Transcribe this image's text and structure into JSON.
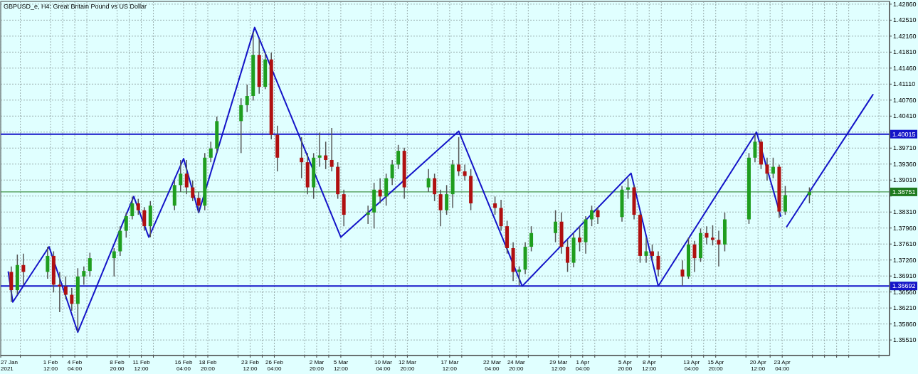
{
  "chart_data": {
    "type": "candlestick",
    "title": "GBPUSD_e, H4:  Great Britain Pound vs US Dollar",
    "x": [
      "2021-01-28T04:00",
      "2021-01-28T20:00",
      "2021-01-29T12:00",
      "2021-02-01T04:00",
      "2021-02-01T20:00",
      "2021-02-02T12:00",
      "2021-02-03T04:00",
      "2021-02-03T20:00",
      "2021-02-04T12:00",
      "2021-02-05T04:00",
      "2021-02-05T20:00",
      "2021-02-08T12:00",
      "2021-02-09T04:00",
      "2021-02-09T20:00",
      "2021-02-10T12:00",
      "2021-02-11T04:00",
      "2021-02-11T20:00",
      "2021-02-12T12:00",
      "2021-02-15T04:00",
      "2021-02-15T20:00",
      "2021-02-16T12:00",
      "2021-02-17T04:00",
      "2021-02-17T20:00",
      "2021-02-18T12:00",
      "2021-02-19T04:00",
      "2021-02-19T20:00",
      "2021-02-22T12:00",
      "2021-02-23T04:00",
      "2021-02-23T20:00",
      "2021-02-24T12:00",
      "2021-02-25T04:00",
      "2021-02-25T20:00",
      "2021-02-26T12:00",
      "2021-03-01T04:00",
      "2021-03-01T20:00",
      "2021-03-02T12:00",
      "2021-03-03T04:00",
      "2021-03-03T20:00",
      "2021-03-04T12:00",
      "2021-03-05T04:00",
      "2021-03-05T20:00",
      "2021-03-08T12:00",
      "2021-03-09T04:00",
      "2021-03-09T20:00",
      "2021-03-10T12:00",
      "2021-03-11T04:00",
      "2021-03-11T20:00",
      "2021-03-12T12:00",
      "2021-03-15T04:00",
      "2021-03-15T20:00",
      "2021-03-16T12:00",
      "2021-03-17T04:00",
      "2021-03-17T20:00",
      "2021-03-18T12:00",
      "2021-03-19T04:00",
      "2021-03-19T20:00",
      "2021-03-22T12:00",
      "2021-03-23T04:00",
      "2021-03-23T20:00",
      "2021-03-24T12:00",
      "2021-03-25T04:00",
      "2021-03-25T20:00",
      "2021-03-26T12:00",
      "2021-03-29T04:00",
      "2021-03-29T20:00",
      "2021-03-30T12:00",
      "2021-03-31T04:00",
      "2021-03-31T20:00",
      "2021-04-01T12:00",
      "2021-04-02T04:00",
      "2021-04-02T20:00",
      "2021-04-05T12:00",
      "2021-04-06T04:00",
      "2021-04-06T20:00",
      "2021-04-07T12:00",
      "2021-04-08T04:00",
      "2021-04-08T20:00",
      "2021-04-09T12:00",
      "2021-04-12T04:00",
      "2021-04-12T20:00",
      "2021-04-13T12:00",
      "2021-04-14T04:00",
      "2021-04-14T20:00",
      "2021-04-15T12:00",
      "2021-04-16T04:00",
      "2021-04-16T20:00",
      "2021-04-19T12:00",
      "2021-04-20T04:00",
      "2021-04-20T20:00",
      "2021-04-21T12:00",
      "2021-04-22T04:00",
      "2021-04-22T20:00",
      "2021-04-23T12:00",
      "2021-04-26T04:00"
    ],
    "ohlc": [
      [
        1.37,
        1.3712,
        1.3634,
        1.366
      ],
      [
        1.366,
        1.3738,
        1.365,
        1.3715
      ],
      [
        1.3715,
        1.374,
        1.3672,
        1.37
      ],
      [
        1.37,
        1.3755,
        1.3685,
        1.3735
      ],
      [
        1.3735,
        1.3745,
        1.3655,
        1.3672
      ],
      [
        1.3672,
        1.37,
        1.3612,
        1.3668
      ],
      [
        1.3668,
        1.369,
        1.364,
        1.365
      ],
      [
        1.365,
        1.3665,
        1.3615,
        1.363
      ],
      [
        1.363,
        1.3708,
        1.357,
        1.369
      ],
      [
        1.369,
        1.3712,
        1.3672,
        1.3702
      ],
      [
        1.3702,
        1.3742,
        1.369,
        1.373
      ],
      [
        1.373,
        1.3752,
        1.369,
        1.3745
      ],
      [
        1.3745,
        1.38,
        1.3735,
        1.379
      ],
      [
        1.379,
        1.383,
        1.3775,
        1.3822
      ],
      [
        1.3822,
        1.3865,
        1.3815,
        1.385
      ],
      [
        1.385,
        1.386,
        1.3825,
        1.3835
      ],
      [
        1.3835,
        1.3842,
        1.379,
        1.38
      ],
      [
        1.38,
        1.3855,
        1.3776,
        1.3845
      ],
      [
        1.3845,
        1.39,
        1.3835,
        1.389
      ],
      [
        1.389,
        1.3945,
        1.3875,
        1.3915
      ],
      [
        1.3915,
        1.3945,
        1.387,
        1.3885
      ],
      [
        1.3885,
        1.39,
        1.3855,
        1.3862
      ],
      [
        1.3862,
        1.3875,
        1.383,
        1.3845
      ],
      [
        1.3845,
        1.396,
        1.3835,
        1.395
      ],
      [
        1.395,
        1.3985,
        1.394,
        1.397
      ],
      [
        1.397,
        1.404,
        1.396,
        1.403
      ],
      [
        1.403,
        1.408,
        1.396,
        1.4065
      ],
      [
        1.4065,
        1.411,
        1.405,
        1.4085
      ],
      [
        1.4085,
        1.4225,
        1.4075,
        1.4175
      ],
      [
        1.4175,
        1.421,
        1.409,
        1.4105
      ],
      [
        1.4105,
        1.418,
        1.41,
        1.4165
      ],
      [
        1.4165,
        1.418,
        1.399,
        1.4
      ],
      [
        1.4,
        1.402,
        1.392,
        1.395
      ],
      [
        1.395,
        1.3995,
        1.3905,
        1.394
      ],
      [
        1.394,
        1.396,
        1.387,
        1.3885
      ],
      [
        1.3885,
        1.396,
        1.386,
        1.395
      ],
      [
        1.395,
        1.4005,
        1.393,
        1.3955
      ],
      [
        1.3955,
        1.3985,
        1.3925,
        1.3945
      ],
      [
        1.3945,
        1.4015,
        1.392,
        1.393
      ],
      [
        1.393,
        1.394,
        1.386,
        1.387
      ],
      [
        1.387,
        1.388,
        1.38,
        1.3825
      ],
      [
        1.3825,
        1.3845,
        1.3805,
        1.383
      ],
      [
        1.383,
        1.3895,
        1.3795,
        1.388
      ],
      [
        1.388,
        1.3905,
        1.385,
        1.3865
      ],
      [
        1.3865,
        1.3915,
        1.3845,
        1.3905
      ],
      [
        1.3905,
        1.3945,
        1.389,
        1.3935
      ],
      [
        1.3935,
        1.3978,
        1.3925,
        1.3965
      ],
      [
        1.3965,
        1.3972,
        1.386,
        1.3885
      ],
      [
        1.3885,
        1.3925,
        1.3875,
        1.3905
      ],
      [
        1.3905,
        1.3915,
        1.3855,
        1.387
      ],
      [
        1.387,
        1.388,
        1.38,
        1.3835
      ],
      [
        1.3835,
        1.389,
        1.3825,
        1.387
      ],
      [
        1.387,
        1.3945,
        1.384,
        1.3935
      ],
      [
        1.3935,
        1.3995,
        1.391,
        1.392
      ],
      [
        1.392,
        1.3935,
        1.39,
        1.391
      ],
      [
        1.391,
        1.3925,
        1.3835,
        1.385
      ],
      [
        1.385,
        1.3865,
        1.3825,
        1.384
      ],
      [
        1.384,
        1.3858,
        1.379,
        1.38
      ],
      [
        1.38,
        1.3812,
        1.374,
        1.3752
      ],
      [
        1.3752,
        1.3765,
        1.368,
        1.37
      ],
      [
        1.37,
        1.3712,
        1.367,
        1.3705
      ],
      [
        1.3705,
        1.3765,
        1.3695,
        1.3755
      ],
      [
        1.3755,
        1.38,
        1.3745,
        1.3785
      ],
      [
        1.3785,
        1.3835,
        1.3765,
        1.381
      ],
      [
        1.381,
        1.383,
        1.374,
        1.3755
      ],
      [
        1.3755,
        1.377,
        1.37,
        1.372
      ],
      [
        1.372,
        1.3785,
        1.371,
        1.3775
      ],
      [
        1.3775,
        1.38,
        1.3745,
        1.3765
      ],
      [
        1.3765,
        1.3822,
        1.374,
        1.3815
      ],
      [
        1.3815,
        1.3845,
        1.38,
        1.3835
      ],
      [
        1.3835,
        1.3842,
        1.3805,
        1.382
      ],
      [
        1.382,
        1.3888,
        1.381,
        1.388
      ],
      [
        1.388,
        1.3905,
        1.386,
        1.3885
      ],
      [
        1.3885,
        1.389,
        1.3815,
        1.3825
      ],
      [
        1.3825,
        1.383,
        1.372,
        1.3735
      ],
      [
        1.3735,
        1.3775,
        1.372,
        1.3745
      ],
      [
        1.3745,
        1.376,
        1.3725,
        1.3735
      ],
      [
        1.3735,
        1.3745,
        1.369,
        1.3705
      ],
      [
        1.3705,
        1.3725,
        1.367,
        1.369
      ],
      [
        1.369,
        1.3775,
        1.3685,
        1.376
      ],
      [
        1.376,
        1.3768,
        1.37,
        1.373
      ],
      [
        1.373,
        1.3795,
        1.3722,
        1.3785
      ],
      [
        1.3785,
        1.38,
        1.376,
        1.3775
      ],
      [
        1.3775,
        1.3802,
        1.3758,
        1.377
      ],
      [
        1.377,
        1.379,
        1.3712,
        1.376
      ],
      [
        1.376,
        1.383,
        1.3745,
        1.3815
      ],
      [
        1.3815,
        1.396,
        1.3805,
        1.395
      ],
      [
        1.395,
        1.4003,
        1.394,
        1.3985
      ],
      [
        1.3985,
        1.399,
        1.3925,
        1.3935
      ],
      [
        1.3935,
        1.395,
        1.39,
        1.3915
      ],
      [
        1.3915,
        1.395,
        1.3905,
        1.393
      ],
      [
        1.393,
        1.3935,
        1.3818,
        1.3832
      ],
      [
        1.3832,
        1.3888,
        1.3825,
        1.3868
      ],
      [
        1.3868,
        1.3885,
        1.385,
        1.3875
      ]
    ],
    "colors": [
      "#b01010",
      "#1f9e1f",
      "#b01010",
      "#1f9e1f",
      "#b01010",
      "#b01010",
      "#b01010",
      "#b01010",
      "#1f9e1f",
      "#1f9e1f",
      "#1f9e1f",
      "#1f9e1f",
      "#1f9e1f",
      "#1f9e1f",
      "#1f9e1f",
      "#b01010",
      "#b01010",
      "#1f9e1f",
      "#1f9e1f",
      "#1f9e1f",
      "#b01010",
      "#b01010",
      "#b01010",
      "#1f9e1f",
      "#1f9e1f",
      "#1f9e1f",
      "#1f9e1f",
      "#1f9e1f",
      "#1f9e1f",
      "#b01010",
      "#1f9e1f",
      "#b01010",
      "#b01010",
      "#b01010",
      "#b01010",
      "#1f9e1f",
      "#1f9e1f",
      "#b01010",
      "#b01010",
      "#b01010",
      "#b01010",
      "#1f9e1f",
      "#1f9e1f",
      "#b01010",
      "#1f9e1f",
      "#1f9e1f",
      "#1f9e1f",
      "#b01010",
      "#1f9e1f",
      "#b01010",
      "#b01010",
      "#1f9e1f",
      "#1f9e1f",
      "#b01010",
      "#b01010",
      "#b01010",
      "#b01010",
      "#b01010",
      "#b01010",
      "#b01010",
      "#1f9e1f",
      "#1f9e1f",
      "#1f9e1f",
      "#1f9e1f",
      "#b01010",
      "#b01010",
      "#1f9e1f",
      "#b01010",
      "#1f9e1f",
      "#1f9e1f",
      "#b01010",
      "#1f9e1f",
      "#1f9e1f",
      "#b01010",
      "#b01010",
      "#1f9e1f",
      "#b01010",
      "#b01010",
      "#b01010",
      "#1f9e1f",
      "#b01010",
      "#1f9e1f",
      "#b01010",
      "#b01010",
      "#b01010",
      "#1f9e1f",
      "#1f9e1f",
      "#1f9e1f",
      "#b01010",
      "#b01010",
      "#1f9e1f",
      "#b01010",
      "#1f9e1f",
      "#1f9e1f"
    ],
    "series": [
      {
        "type": "line",
        "color": "#1414c8",
        "x": [
          "2021-01-27T20:00",
          "2021-01-28T08:00",
          "2021-02-01T08:00",
          "2021-02-04T12:00",
          "2021-02-10T16:00",
          "2021-02-12T08:00",
          "2021-02-16T04:00",
          "2021-02-17T20:00",
          "2021-02-24T00:00",
          "2021-03-05T12:00",
          "2021-03-18T12:00",
          "2021-03-25T12:00",
          "2021-04-06T12:00",
          "2021-04-09T12:00",
          "2021-04-20T08:00",
          "2021-04-23T00:00"
        ],
        "values": [
          1.37,
          1.3634,
          1.3755,
          1.3568,
          1.3865,
          1.3776,
          1.3948,
          1.383,
          1.4235,
          1.3776,
          1.4008,
          1.3669,
          1.3916,
          1.3669,
          1.4006,
          1.3822
        ]
      },
      {
        "type": "line",
        "color": "#1414c8",
        "x": [
          "2021-04-23T16:00",
          "2021-05-03T04:00"
        ],
        "values": [
          1.3799,
          1.4088
        ]
      }
    ],
    "xlim": [
      "2021-01-27",
      "2021-05-05"
    ],
    "xticks": [
      {
        "value": "2021-01-27",
        "label": "27 Jan 2021"
      },
      {
        "value": "2021-01-29T04:00",
        "label": null
      },
      {
        "value": "2021-02-01T12:00",
        "label": "1 Feb 12:00"
      },
      {
        "value": "2021-02-02T20:00",
        "label": null
      },
      {
        "value": "2021-02-04T04:00",
        "label": "4 Feb 04:00"
      },
      {
        "value": "2021-02-05T12:00",
        "label": null
      },
      {
        "value": "2021-02-08T20:00",
        "label": "8 Feb 20:00"
      },
      {
        "value": "2021-02-10T04:00",
        "label": null
      },
      {
        "value": "2021-02-11T12:00",
        "label": "11 Feb 12:00"
      },
      {
        "value": "2021-02-12T20:00",
        "label": null
      },
      {
        "value": "2021-02-16T04:00",
        "label": "16 Feb 04:00"
      },
      {
        "value": "2021-02-17T12:00",
        "label": null
      },
      {
        "value": "2021-02-18T20:00",
        "label": "18 Feb 20:00"
      },
      {
        "value": "2021-02-22T04:00",
        "label": null
      },
      {
        "value": "2021-02-23T12:00",
        "label": "23 Feb 12:00"
      },
      {
        "value": "2021-02-24T20:00",
        "label": null
      },
      {
        "value": "2021-02-26T04:00",
        "label": "26 Feb 04:00"
      },
      {
        "value": "2021-03-01T12:00",
        "label": null
      },
      {
        "value": "2021-03-02T20:00",
        "label": "2 Mar 20:00"
      },
      {
        "value": "2021-03-04T04:00",
        "label": null
      },
      {
        "value": "2021-03-05T12:00",
        "label": "5 Mar 12:00"
      },
      {
        "value": "2021-03-08T20:00",
        "label": null
      },
      {
        "value": "2021-03-10T04:00",
        "label": "10 Mar 04:00"
      },
      {
        "value": "2021-03-11T12:00",
        "label": null
      },
      {
        "value": "2021-03-12T20:00",
        "label": "12 Mar 20:00"
      },
      {
        "value": "2021-03-16T04:00",
        "label": null
      },
      {
        "value": "2021-03-17T12:00",
        "label": "17 Mar 12:00"
      },
      {
        "value": "2021-03-18T20:00",
        "label": null
      },
      {
        "value": "2021-03-22T04:00",
        "label": "22 Mar 04:00"
      },
      {
        "value": "2021-03-23T12:00",
        "label": null
      },
      {
        "value": "2021-03-24T20:00",
        "label": "24 Mar 20:00"
      },
      {
        "value": "2021-03-26T04:00",
        "label": null
      },
      {
        "value": "2021-03-29T12:00",
        "label": "29 Mar 12:00"
      },
      {
        "value": "2021-03-30T20:00",
        "label": null
      },
      {
        "value": "2021-04-01T04:00",
        "label": "1 Apr 04:00"
      },
      {
        "value": "2021-04-02T12:00",
        "label": null
      },
      {
        "value": "2021-04-05T20:00",
        "label": "5 Apr 20:00"
      },
      {
        "value": "2021-04-07T04:00",
        "label": null
      },
      {
        "value": "2021-04-08T12:00",
        "label": "8 Apr 12:00"
      },
      {
        "value": "2021-04-09T20:00",
        "label": null
      },
      {
        "value": "2021-04-13T04:00",
        "label": "13 Apr 04:00"
      },
      {
        "value": "2021-04-14T12:00",
        "label": null
      },
      {
        "value": "2021-04-15T20:00",
        "label": "15 Apr 20:00"
      },
      {
        "value": "2021-04-19T04:00",
        "label": null
      },
      {
        "value": "2021-04-20T12:00",
        "label": "20 Apr 12:00"
      },
      {
        "value": "2021-04-21T20:00",
        "label": null
      },
      {
        "value": "2021-04-23T04:00",
        "label": "23 Apr 04:00"
      },
      {
        "value": "2021-04-26T12:00",
        "label": null
      },
      {
        "value": "2021-04-27T20:00",
        "label": null
      },
      {
        "value": "2021-04-29T04:00",
        "label": null
      },
      {
        "value": "2021-04-30T12:00",
        "label": null
      },
      {
        "value": "2021-05-03T20:00",
        "label": null
      }
    ],
    "ylim": [
      1.3517,
      1.4292
    ],
    "yticks": [
      {
        "value": 1.3551,
        "label": "1.35510"
      },
      {
        "value": 1.3586,
        "label": "1.35860"
      },
      {
        "value": 1.3621,
        "label": "1.36210"
      },
      {
        "value": 1.3656,
        "label": "1.36560"
      },
      {
        "value": 1.3691,
        "label": "1.36910"
      },
      {
        "value": 1.3726,
        "label": "1.37260"
      },
      {
        "value": 1.3761,
        "label": "1.37610"
      },
      {
        "value": 1.3796,
        "label": "1.37960"
      },
      {
        "value": 1.3831,
        "label": "1.38310"
      },
      {
        "value": 1.3866,
        "label": null
      },
      {
        "value": 1.3901,
        "label": "1.39010"
      },
      {
        "value": 1.3936,
        "label": "1.39360"
      },
      {
        "value": 1.3971,
        "label": "1.39710"
      },
      {
        "value": 1.4006,
        "label": null
      },
      {
        "value": 1.4041,
        "label": "1.40410"
      },
      {
        "value": 1.4076,
        "label": "1.40760"
      },
      {
        "value": 1.4111,
        "label": "1.41110"
      },
      {
        "value": 1.4146,
        "label": "1.41460"
      },
      {
        "value": 1.4181,
        "label": "1.41810"
      },
      {
        "value": 1.4216,
        "label": "1.42160"
      },
      {
        "value": 1.4251,
        "label": "1.42510"
      },
      {
        "value": 1.4286,
        "label": "1.42860"
      }
    ],
    "grid": true,
    "ref_lines": [
      {
        "axis": "y",
        "value": 1.40015,
        "label": "1.40015",
        "color": "#1414c8"
      },
      {
        "axis": "y",
        "value": 1.36692,
        "label": "1.36692",
        "color": "#1414c8"
      },
      {
        "axis": "y",
        "value": 1.38751,
        "label": "1.38751",
        "color": "#1e7a1e"
      }
    ]
  }
}
